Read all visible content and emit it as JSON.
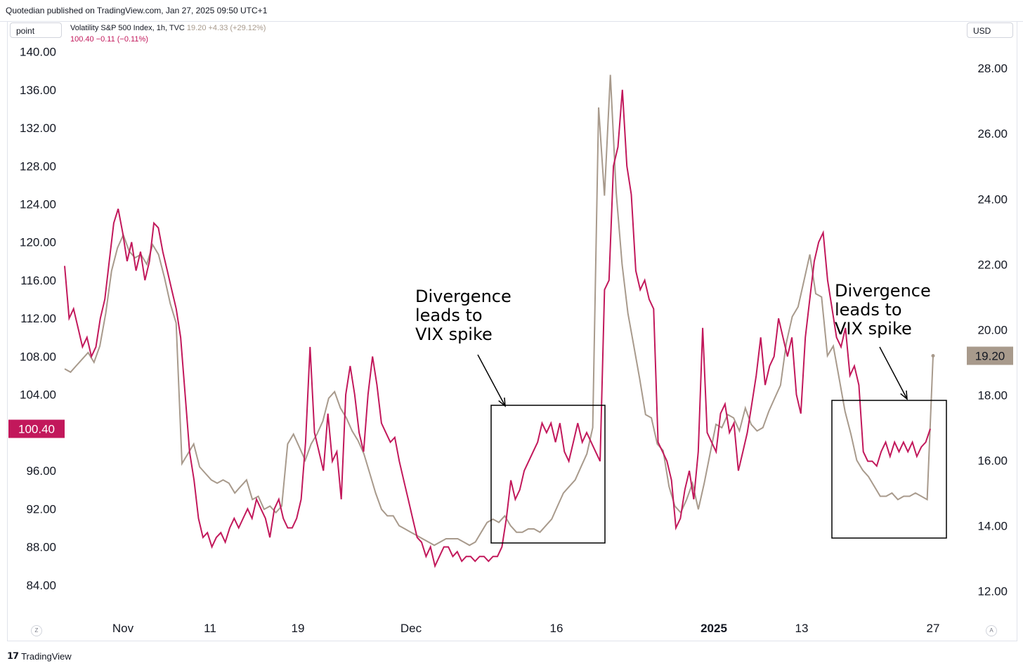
{
  "header": {
    "published": "Quotedian published on TradingView.com, Jan 27, 2025 09:50 UTC+1"
  },
  "toolbar": {
    "symbol": "point",
    "currency": "USD"
  },
  "legend": {
    "vix_name": "Volatility S&P 500 Index, 1h, TVC",
    "vix_values": "19.20 +4.33 (+29.12%)",
    "point_values": "100.40 −0.11 (−0.11%)"
  },
  "footer": {
    "brand": "TradingView",
    "left_button": "Z",
    "right_button": "A"
  },
  "colors": {
    "point_series": "#c2185b",
    "vix_series": "#a89a8c",
    "annotation": "#000000"
  },
  "chart_data": {
    "type": "line",
    "x_axis": {
      "tick_labels": [
        "Nov",
        "11",
        "19",
        "Dec",
        "16",
        "2025",
        "13",
        "27"
      ],
      "bold_labels": [
        "2025"
      ]
    },
    "left_axis": {
      "ylim": [
        82,
        141
      ],
      "ticks": [
        "140.00",
        "136.00",
        "132.00",
        "128.00",
        "124.00",
        "120.00",
        "116.00",
        "112.00",
        "108.00",
        "104.00",
        "100.00",
        "96.00",
        "92.00",
        "88.00",
        "84.00"
      ],
      "last_value_label": "100.40"
    },
    "right_axis": {
      "ylim": [
        11.6,
        28.8
      ],
      "ticks": [
        "28.00",
        "26.00",
        "24.00",
        "22.00",
        "20.00",
        "18.00",
        "16.00",
        "14.00",
        "12.00"
      ],
      "last_value_label": "19.20"
    },
    "series": [
      {
        "name": "point",
        "axis": "left",
        "values": [
          117.5,
          112,
          113,
          111,
          109,
          110,
          108,
          109,
          112,
          114,
          118,
          122,
          123.5,
          121,
          118,
          120,
          117,
          119,
          116,
          118,
          122,
          121.5,
          119,
          117,
          115,
          113,
          110,
          104,
          98,
          95,
          91,
          89,
          89.5,
          88,
          89,
          89.5,
          88.5,
          90,
          91,
          90,
          91,
          92,
          91,
          93,
          92,
          91,
          89,
          92,
          93,
          91,
          90,
          90,
          91,
          93,
          99,
          109,
          100,
          98,
          96,
          102,
          97,
          98,
          93,
          104,
          107,
          104,
          100,
          98,
          104,
          108,
          105,
          101,
          100,
          99,
          99.5,
          97,
          95,
          93,
          91,
          89,
          88.5,
          87,
          88,
          86,
          87,
          88,
          88,
          87,
          87.5,
          86.5,
          87,
          87,
          86.5,
          87,
          87,
          86.5,
          87,
          87,
          88,
          91,
          95,
          93,
          94,
          96,
          97,
          98,
          99,
          101,
          100,
          101,
          99,
          101,
          98,
          97,
          99,
          101,
          99,
          100,
          99,
          98,
          97,
          115,
          116,
          128,
          130,
          136,
          128,
          125,
          117,
          115,
          116,
          114,
          113,
          99,
          98,
          97,
          95,
          90,
          91,
          94,
          96,
          93,
          98,
          111,
          100,
          99,
          98,
          102,
          103,
          100,
          101,
          96,
          98,
          100,
          103,
          106,
          110,
          105,
          107,
          108,
          112,
          110,
          108,
          110,
          104,
          102,
          110,
          114,
          118,
          120,
          121,
          116,
          113,
          110,
          109,
          111,
          106,
          107,
          105,
          98,
          97,
          97,
          96.5,
          98,
          99,
          97.5,
          99,
          98,
          99,
          98,
          99,
          97.5,
          98.5,
          99,
          100.4
        ],
        "last": 100.4
      },
      {
        "name": "VIX",
        "axis": "right",
        "values": [
          18.8,
          18.7,
          18.9,
          19.1,
          19.3,
          19.0,
          19.5,
          20.5,
          21.8,
          22.5,
          22.9,
          22.4,
          22.2,
          22.3,
          22.0,
          22.6,
          22.3,
          21.6,
          20.8,
          20.2,
          15.9,
          16.2,
          16.5,
          15.8,
          15.6,
          15.4,
          15.3,
          15.4,
          15.3,
          15.0,
          15.2,
          15.4,
          14.8,
          14.9,
          14.5,
          14.6,
          14.4,
          14.6,
          16.5,
          16.8,
          16.4,
          16.0,
          16.5,
          16.8,
          17.2,
          17.9,
          18.1,
          17.6,
          17.3,
          16.9,
          16.6,
          16.2,
          15.6,
          15.0,
          14.5,
          14.3,
          14.3,
          14.0,
          13.9,
          13.8,
          13.7,
          13.6,
          13.5,
          13.4,
          13.5,
          13.6,
          13.6,
          13.6,
          13.5,
          13.4,
          13.5,
          13.8,
          14.1,
          14.2,
          14.1,
          14.3,
          14.0,
          13.8,
          13.8,
          13.9,
          13.9,
          13.8,
          14.0,
          14.2,
          14.6,
          15.0,
          15.2,
          15.4,
          15.8,
          16.2,
          17.0,
          26.8,
          24.1,
          27.8,
          24.2,
          22.0,
          20.5,
          19.5,
          18.5,
          17.4,
          17.3,
          16.5,
          16.3,
          15.2,
          14.6,
          14.4,
          14.8,
          15.3,
          14.5,
          15.3,
          16.2,
          17.1,
          17.0,
          17.4,
          17.3,
          16.9,
          17.6,
          17.1,
          16.9,
          17.0,
          17.5,
          17.9,
          18.3,
          19.6,
          20.4,
          20.7,
          21.5,
          22.3,
          21.1,
          21.0,
          19.2,
          19.5,
          18.5,
          17.5,
          16.8,
          16.0,
          15.7,
          15.5,
          15.2,
          14.9,
          14.9,
          15.0,
          14.8,
          14.9,
          14.9,
          15.0,
          14.9,
          14.8,
          19.2
        ],
        "last": 19.2
      }
    ],
    "annotations": [
      {
        "text": [
          "Divergence",
          "leads to",
          "VIX spike"
        ]
      },
      {
        "text": [
          "Divergence",
          "leads to",
          "VIX spike"
        ]
      }
    ]
  }
}
